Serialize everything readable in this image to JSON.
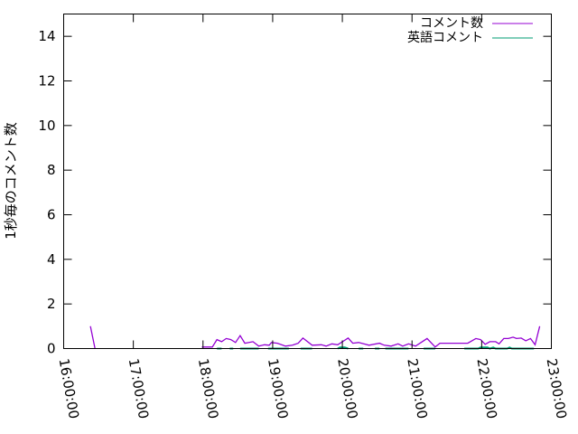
{
  "chart_data": {
    "type": "line",
    "title": "",
    "xlabel": "",
    "ylabel": "1秒毎のコメント数",
    "xlim": [
      "16:00:00",
      "23:00:00"
    ],
    "ylim": [
      0,
      15
    ],
    "x_tick_labels": [
      "16:00:00",
      "17:00:00",
      "18:00:00",
      "19:00:00",
      "20:00:00",
      "21:00:00",
      "22:00:00",
      "23:00:00"
    ],
    "y_tick_labels": [
      "0",
      "2",
      "4",
      "6",
      "8",
      "10",
      "12",
      "14"
    ],
    "y_ticks": [
      0,
      2,
      4,
      6,
      8,
      10,
      12,
      14
    ],
    "grid": false,
    "legend_position": "top-right",
    "series": [
      {
        "name": "コメント数",
        "color": "#9400d3",
        "segments": [
          [
            [
              "16:23",
              1.0
            ],
            [
              "16:27",
              0.0
            ]
          ],
          [
            [
              "17:59",
              0.07
            ],
            [
              "18:08",
              0.07
            ],
            [
              "18:12",
              0.4
            ],
            [
              "18:16",
              0.31
            ],
            [
              "18:20",
              0.45
            ],
            [
              "18:24",
              0.4
            ],
            [
              "18:28",
              0.27
            ],
            [
              "18:32",
              0.58
            ],
            [
              "18:36",
              0.24
            ],
            [
              "18:43",
              0.31
            ],
            [
              "18:48",
              0.11
            ],
            [
              "18:53",
              0.17
            ],
            [
              "18:57",
              0.15
            ],
            [
              "18:59",
              0.27
            ],
            [
              "19:04",
              0.24
            ],
            [
              "19:11",
              0.11
            ],
            [
              "19:17",
              0.15
            ],
            [
              "19:22",
              0.24
            ],
            [
              "19:26",
              0.47
            ],
            [
              "19:34",
              0.15
            ],
            [
              "19:42",
              0.17
            ],
            [
              "19:46",
              0.11
            ],
            [
              "19:51",
              0.21
            ],
            [
              "19:56",
              0.17
            ],
            [
              "20:05",
              0.47
            ],
            [
              "20:09",
              0.24
            ],
            [
              "20:14",
              0.27
            ],
            [
              "20:23",
              0.15
            ],
            [
              "20:32",
              0.24
            ],
            [
              "20:36",
              0.15
            ],
            [
              "20:42",
              0.11
            ],
            [
              "20:48",
              0.21
            ],
            [
              "20:52",
              0.11
            ],
            [
              "20:57",
              0.21
            ],
            [
              "21:03",
              0.11
            ],
            [
              "21:13",
              0.45
            ],
            [
              "21:20",
              0.07
            ],
            [
              "21:24",
              0.24
            ],
            [
              "21:48",
              0.24
            ],
            [
              "21:55",
              0.45
            ],
            [
              "21:59",
              0.4
            ],
            [
              "22:03",
              0.19
            ],
            [
              "22:07",
              0.31
            ],
            [
              "22:12",
              0.31
            ],
            [
              "22:15",
              0.21
            ],
            [
              "22:19",
              0.45
            ],
            [
              "22:23",
              0.45
            ],
            [
              "22:27",
              0.51
            ],
            [
              "22:30",
              0.45
            ],
            [
              "22:34",
              0.47
            ],
            [
              "22:38",
              0.35
            ],
            [
              "22:42",
              0.45
            ],
            [
              "22:46",
              0.17
            ],
            [
              "22:50",
              1.0
            ]
          ]
        ]
      },
      {
        "name": "英語コメント",
        "color": "#009e73",
        "segments": [
          [
            [
              "18:12",
              0
            ],
            [
              "18:16",
              0
            ]
          ],
          [
            [
              "18:23",
              0
            ],
            [
              "18:26",
              0
            ]
          ],
          [
            [
              "18:32",
              0
            ],
            [
              "18:48",
              0
            ]
          ],
          [
            [
              "18:56",
              0
            ],
            [
              "19:14",
              0
            ]
          ],
          [
            [
              "19:24",
              0
            ],
            [
              "19:34",
              0
            ]
          ],
          [
            [
              "19:56",
              0
            ],
            [
              "19:58",
              0.05
            ],
            [
              "20:02",
              0.05
            ],
            [
              "20:05",
              0
            ]
          ],
          [
            [
              "20:14",
              0
            ],
            [
              "20:18",
              0
            ]
          ],
          [
            [
              "20:28",
              0
            ],
            [
              "20:32",
              0
            ]
          ],
          [
            [
              "20:37",
              0
            ],
            [
              "20:57",
              0
            ]
          ],
          [
            [
              "21:10",
              0
            ],
            [
              "21:20",
              0
            ]
          ],
          [
            [
              "21:45",
              0
            ],
            [
              "21:57",
              0
            ],
            [
              "21:59",
              0.05
            ],
            [
              "22:05",
              0.05
            ],
            [
              "22:07",
              0
            ],
            [
              "22:10",
              0.05
            ],
            [
              "22:12",
              0
            ],
            [
              "22:22",
              0
            ],
            [
              "22:24",
              0.05
            ],
            [
              "22:26",
              0
            ],
            [
              "22:45",
              0
            ]
          ]
        ]
      }
    ]
  }
}
